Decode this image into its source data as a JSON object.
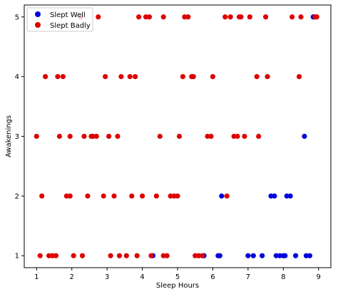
{
  "chart_data": {
    "type": "scatter",
    "xlabel": "Sleep Hours",
    "ylabel": "Awakenings",
    "xlim": [
      0.65,
      9.35
    ],
    "ylim": [
      0.8,
      5.2
    ],
    "xticks": [
      1,
      2,
      3,
      4,
      5,
      6,
      7,
      8,
      9
    ],
    "yticks": [
      1,
      2,
      3,
      4,
      5
    ],
    "grid": false,
    "legend": "top-left",
    "series": [
      {
        "name": "Slept Well",
        "color": "#0000dd",
        "points": [
          [
            4.3,
            1
          ],
          [
            5.75,
            1
          ],
          [
            6.15,
            1
          ],
          [
            6.2,
            1
          ],
          [
            7.0,
            1
          ],
          [
            7.15,
            1
          ],
          [
            7.4,
            1
          ],
          [
            7.8,
            1
          ],
          [
            7.9,
            1
          ],
          [
            8.0,
            1
          ],
          [
            8.05,
            1
          ],
          [
            8.35,
            1
          ],
          [
            8.65,
            1
          ],
          [
            8.75,
            1
          ],
          [
            6.25,
            2
          ],
          [
            7.65,
            2
          ],
          [
            7.75,
            2
          ],
          [
            8.1,
            2
          ],
          [
            8.2,
            2
          ],
          [
            8.6,
            3
          ],
          [
            8.85,
            5
          ]
        ]
      },
      {
        "name": "Slept Badly",
        "color": "#dd0000",
        "points": [
          [
            1.1,
            1
          ],
          [
            1.35,
            1
          ],
          [
            1.45,
            1
          ],
          [
            1.55,
            1
          ],
          [
            2.05,
            1
          ],
          [
            2.3,
            1
          ],
          [
            3.1,
            1
          ],
          [
            3.35,
            1
          ],
          [
            3.55,
            1
          ],
          [
            3.85,
            1
          ],
          [
            4.25,
            1
          ],
          [
            4.6,
            1
          ],
          [
            4.7,
            1
          ],
          [
            5.5,
            1
          ],
          [
            5.6,
            1
          ],
          [
            5.7,
            1
          ],
          [
            1.15,
            2
          ],
          [
            1.85,
            2
          ],
          [
            1.95,
            2
          ],
          [
            2.45,
            2
          ],
          [
            2.9,
            2
          ],
          [
            3.2,
            2
          ],
          [
            3.7,
            2
          ],
          [
            4.0,
            2
          ],
          [
            4.4,
            2
          ],
          [
            4.8,
            2
          ],
          [
            4.9,
            2
          ],
          [
            5.0,
            2
          ],
          [
            6.4,
            2
          ],
          [
            1.0,
            3
          ],
          [
            1.65,
            3
          ],
          [
            1.95,
            3
          ],
          [
            2.35,
            3
          ],
          [
            2.55,
            3
          ],
          [
            2.6,
            3
          ],
          [
            2.7,
            3
          ],
          [
            3.05,
            3
          ],
          [
            3.3,
            3
          ],
          [
            4.5,
            3
          ],
          [
            5.05,
            3
          ],
          [
            5.85,
            3
          ],
          [
            5.95,
            3
          ],
          [
            6.6,
            3
          ],
          [
            6.7,
            3
          ],
          [
            6.9,
            3
          ],
          [
            7.3,
            3
          ],
          [
            1.25,
            4
          ],
          [
            1.6,
            4
          ],
          [
            1.75,
            4
          ],
          [
            2.95,
            4
          ],
          [
            3.4,
            4
          ],
          [
            3.65,
            4
          ],
          [
            3.8,
            4
          ],
          [
            5.15,
            4
          ],
          [
            5.4,
            4
          ],
          [
            5.45,
            4
          ],
          [
            6.0,
            4
          ],
          [
            7.25,
            4
          ],
          [
            7.55,
            4
          ],
          [
            8.45,
            4
          ],
          [
            2.25,
            5
          ],
          [
            2.75,
            5
          ],
          [
            3.9,
            5
          ],
          [
            4.1,
            5
          ],
          [
            4.2,
            5
          ],
          [
            4.6,
            5
          ],
          [
            5.2,
            5
          ],
          [
            5.3,
            5
          ],
          [
            6.35,
            5
          ],
          [
            6.5,
            5
          ],
          [
            6.75,
            5
          ],
          [
            6.8,
            5
          ],
          [
            7.05,
            5
          ],
          [
            7.5,
            5
          ],
          [
            8.25,
            5
          ],
          [
            8.5,
            5
          ],
          [
            8.9,
            5
          ],
          [
            8.95,
            5
          ]
        ]
      }
    ]
  }
}
